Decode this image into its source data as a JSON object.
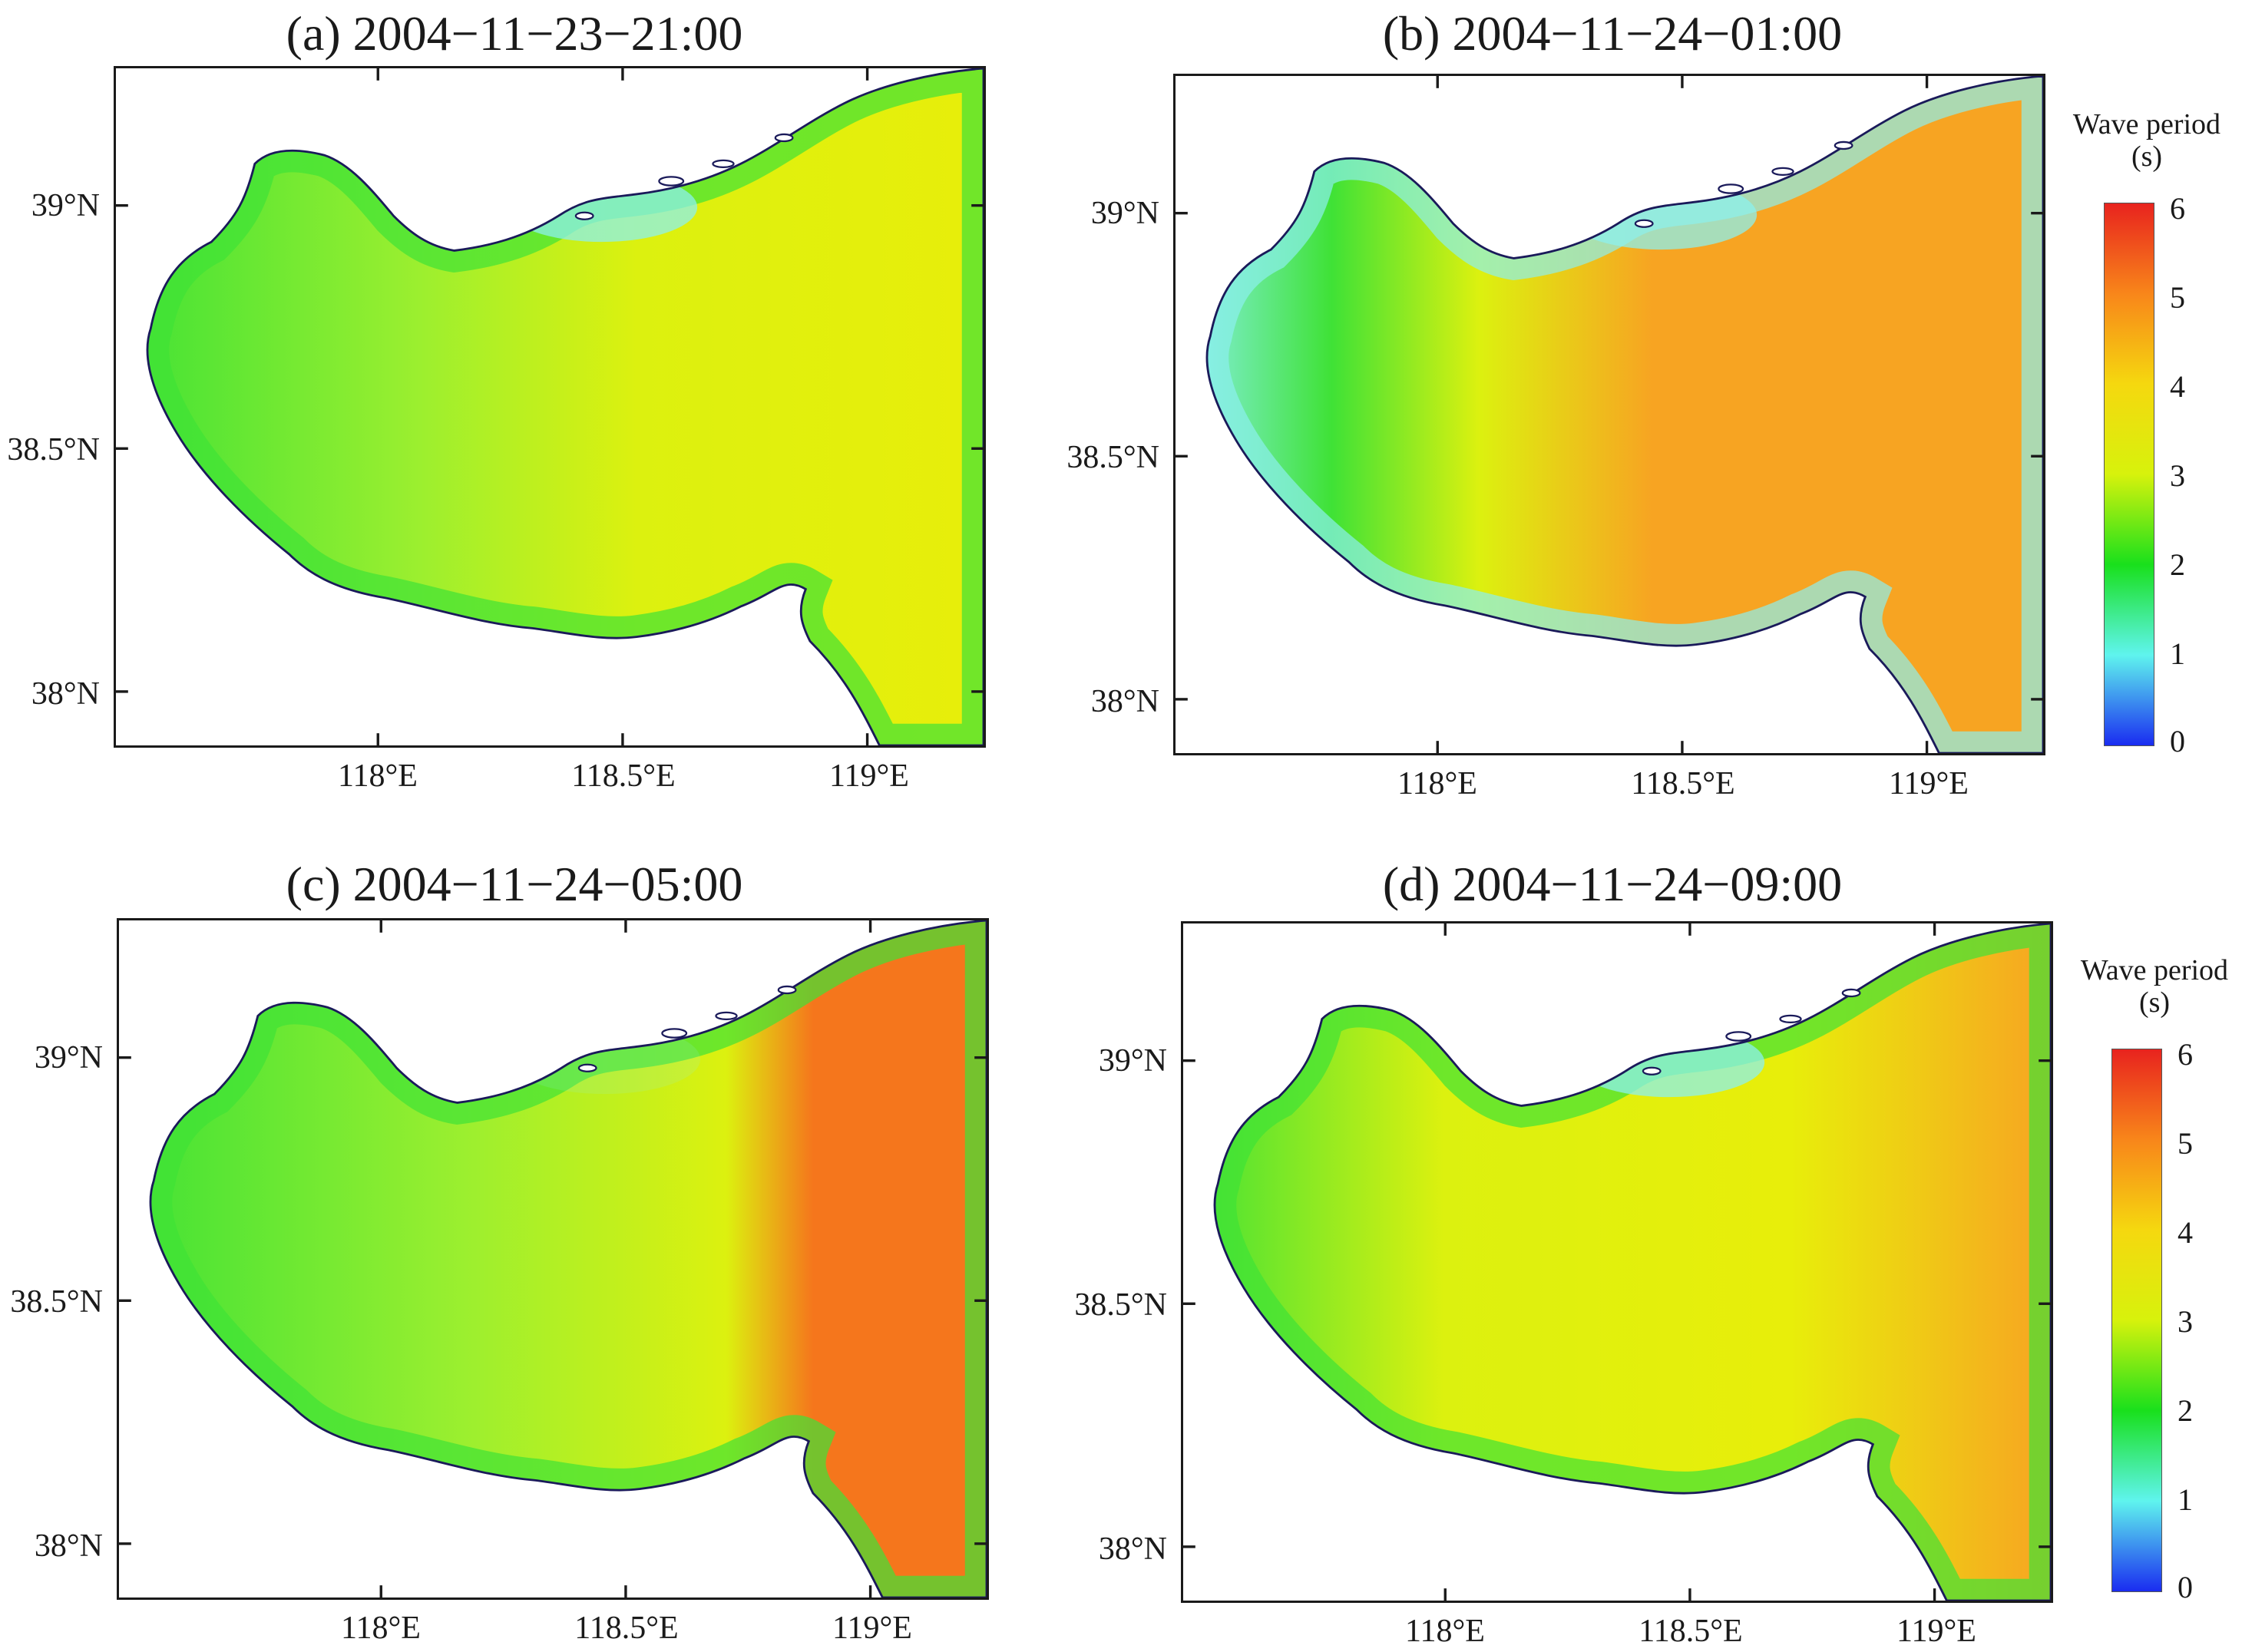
{
  "panels": [
    {
      "id": "a",
      "title": "(a) 2004−11−23−21:00",
      "scheme": "a"
    },
    {
      "id": "b",
      "title": "(b) 2004−11−24−01:00",
      "scheme": "b"
    },
    {
      "id": "c",
      "title": "(c) 2004−11−24−05:00",
      "scheme": "c"
    },
    {
      "id": "d",
      "title": "(d) 2004−11−24−09:00",
      "scheme": "d"
    }
  ],
  "axes": {
    "lat_labels": [
      "39°N",
      "38.5°N",
      "38°N"
    ],
    "lon_labels": [
      "118°E",
      "118.5°E",
      "119°E"
    ]
  },
  "colorbar": {
    "title_line1": "Wave period",
    "title_line2": "(s)",
    "ticks": [
      "6",
      "5",
      "4",
      "3",
      "2",
      "1",
      "0"
    ],
    "colors": [
      "#e8231e",
      "#f8861a",
      "#f5d80f",
      "#d7f20c",
      "#19e01c",
      "#5ff4ee",
      "#1a2cf0"
    ]
  },
  "colors": {
    "land": "#ffffff",
    "coast": "#1a1a5a",
    "green": "#3fe236",
    "light_green": "#9cef2f",
    "yellow": "#dcf10f",
    "yellow2": "#e8ee0a",
    "orange": "#f7a422",
    "deep_orange": "#f5761c",
    "cyan": "#8cf0ee"
  }
}
